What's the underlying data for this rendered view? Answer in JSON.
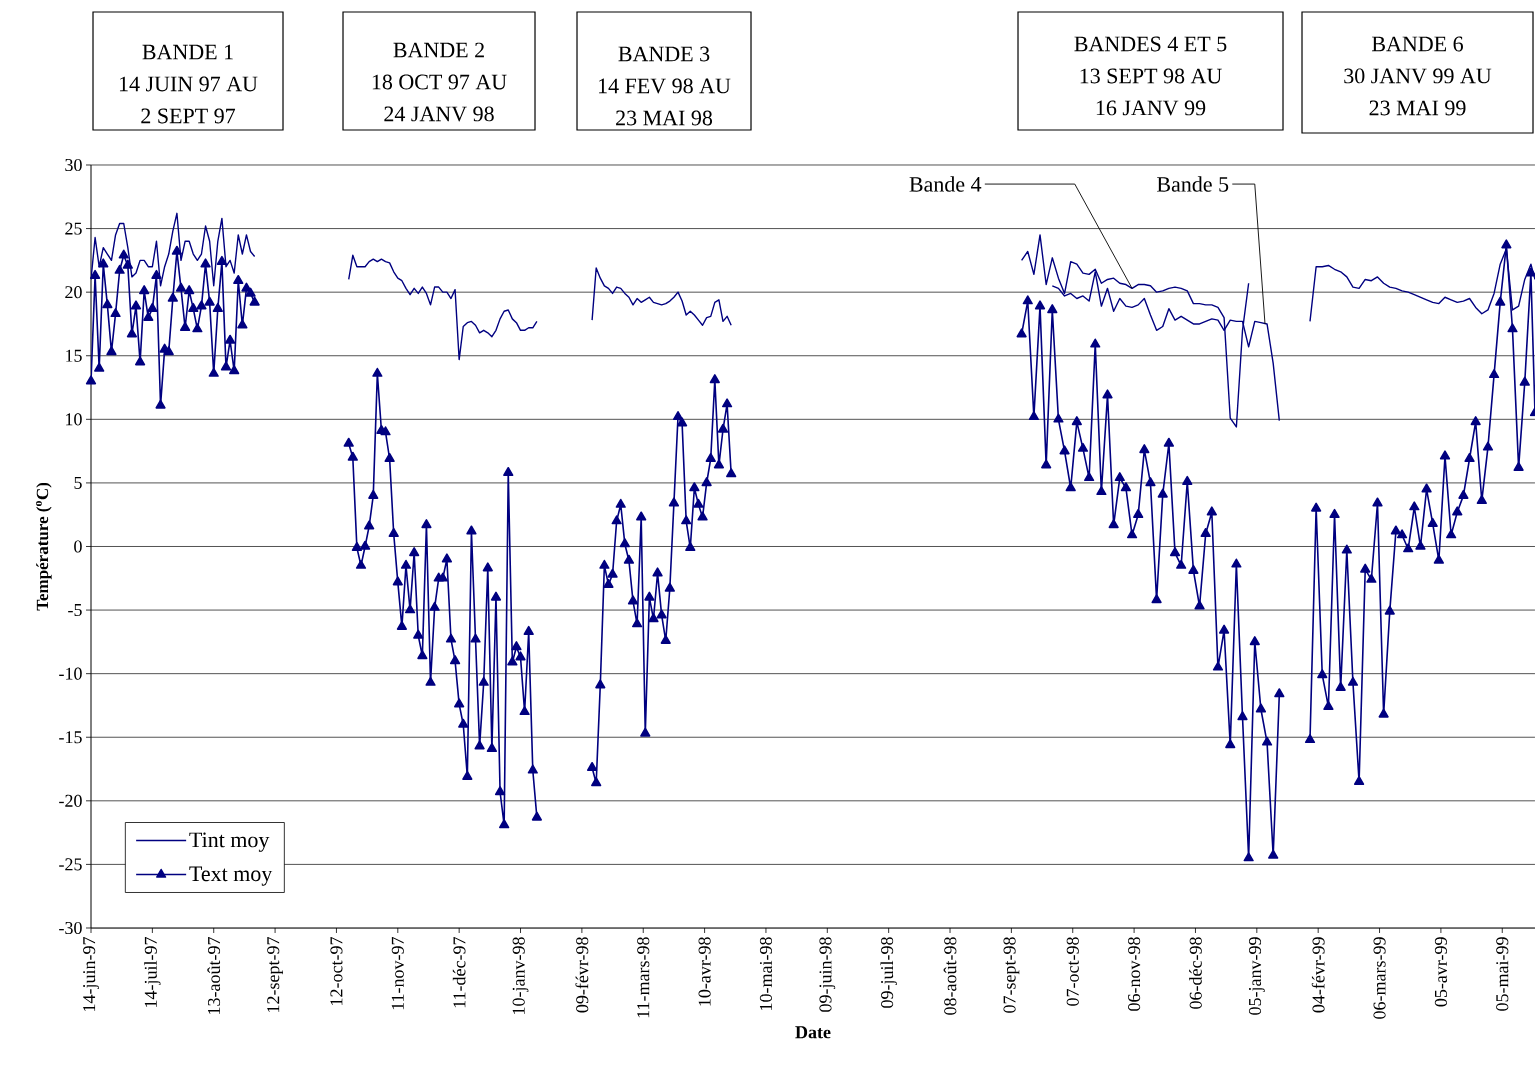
{
  "chart_data": {
    "type": "line",
    "xlabel": "Date",
    "ylabel": "Température ($^{o}$C)",
    "xlim": [
      "1997-06-14",
      "1999-05-21"
    ],
    "ylim": [
      -30,
      30
    ],
    "yticks": [
      -30,
      -25,
      -20,
      -15,
      -10,
      -5,
      0,
      5,
      10,
      15,
      20,
      25,
      30
    ],
    "xticks": [
      {
        "value": "1997-06-14",
        "label": "14-juin-97"
      },
      {
        "value": "1997-07-14",
        "label": "14-juil-97"
      },
      {
        "value": "1997-08-13",
        "label": "13-août-97"
      },
      {
        "value": "1997-09-12",
        "label": "12-sept-97"
      },
      {
        "value": "1997-10-12",
        "label": "12-oct-97"
      },
      {
        "value": "1997-11-11",
        "label": "11-nov-97"
      },
      {
        "value": "1997-12-11",
        "label": "11-déc-97"
      },
      {
        "value": "1998-01-10",
        "label": "10-janv-98"
      },
      {
        "value": "1998-02-09",
        "label": "09-févr-98"
      },
      {
        "value": "1998-03-11",
        "label": "11-mars-98"
      },
      {
        "value": "1998-04-10",
        "label": "10-avr-98"
      },
      {
        "value": "1998-05-10",
        "label": "10-mai-98"
      },
      {
        "value": "1998-06-09",
        "label": "09-juin-98"
      },
      {
        "value": "1998-07-09",
        "label": "09-juil-98"
      },
      {
        "value": "1998-08-08",
        "label": "08-août-98"
      },
      {
        "value": "1998-09-07",
        "label": "07-sept-98"
      },
      {
        "value": "1998-10-07",
        "label": "07-oct-98"
      },
      {
        "value": "1998-11-06",
        "label": "06-nov-98"
      },
      {
        "value": "1998-12-06",
        "label": "06-déc-98"
      },
      {
        "value": "1999-01-05",
        "label": "05-janv-99"
      },
      {
        "value": "1999-02-04",
        "label": "04-févr-99"
      },
      {
        "value": "1999-03-06",
        "label": "06-mars-99"
      },
      {
        "value": "1999-04-05",
        "label": "05-avr-99"
      },
      {
        "value": "1999-05-05",
        "label": "05-mai-99"
      }
    ],
    "grid": "y",
    "legend": "bottom left",
    "annotations": [
      "BANDE 1",
      "14 JUIN 97 AU",
      "2 SEPT 97",
      "BANDE 2",
      "18 OCT 97 AU",
      "24 JANV 98",
      "BANDE 3",
      "14 FEV 98 AU",
      "23 MAI 98",
      "BANDES 4 ET 5",
      "13 SEPT 98 AU",
      "16 JANV 99",
      "BANDE 6",
      "30 JANV 99 AU",
      "23 MAI 99",
      {
        "text": "Bande 4",
        "x": "1998-11-05",
        "y": 20.3
      },
      {
        "text": "Bande 5",
        "x": "1999-01-09",
        "y": 17.5
      }
    ],
    "x": [
      "1997-06-14",
      "1997-06-16",
      "1997-06-18",
      "1997-06-20",
      "1997-06-22",
      "1997-06-24",
      "1997-06-26",
      "1997-06-28",
      "1997-06-30",
      "1997-07-02",
      "1997-07-04",
      "1997-07-06",
      "1997-07-08",
      "1997-07-10",
      "1997-07-12",
      "1997-07-14",
      "1997-07-16",
      "1997-07-18",
      "1997-07-20",
      "1997-07-22",
      "1997-07-24",
      "1997-07-26",
      "1997-07-28",
      "1997-07-30",
      "1997-08-01",
      "1997-08-03",
      "1997-08-05",
      "1997-08-07",
      "1997-08-09",
      "1997-08-11",
      "1997-08-13",
      "1997-08-15",
      "1997-08-17",
      "1997-08-19",
      "1997-08-21",
      "1997-08-23",
      "1997-08-25",
      "1997-08-27",
      "1997-08-29",
      "1997-08-31",
      "1997-09-02",
      "1997-09-22",
      "1997-10-18",
      "1997-10-20",
      "1997-10-22",
      "1997-10-24",
      "1997-10-26",
      "1997-10-28",
      "1997-10-30",
      "1997-11-01",
      "1997-11-03",
      "1997-11-05",
      "1997-11-07",
      "1997-11-09",
      "1997-11-11",
      "1997-11-13",
      "1997-11-15",
      "1997-11-17",
      "1997-11-19",
      "1997-11-21",
      "1997-11-23",
      "1997-11-25",
      "1997-11-27",
      "1997-11-29",
      "1997-12-01",
      "1997-12-03",
      "1997-12-05",
      "1997-12-07",
      "1997-12-09",
      "1997-12-11",
      "1997-12-13",
      "1997-12-15",
      "1997-12-17",
      "1997-12-19",
      "1997-12-21",
      "1997-12-23",
      "1997-12-25",
      "1997-12-27",
      "1997-12-29",
      "1997-12-31",
      "1998-01-02",
      "1998-01-04",
      "1998-01-06",
      "1998-01-08",
      "1998-01-10",
      "1998-01-12",
      "1998-01-14",
      "1998-01-16",
      "1998-01-18",
      "1998-02-01",
      "1998-02-14",
      "1998-02-16",
      "1998-02-18",
      "1998-02-20",
      "1998-02-22",
      "1998-02-24",
      "1998-02-26",
      "1998-02-28",
      "1998-03-02",
      "1998-03-04",
      "1998-03-06",
      "1998-03-08",
      "1998-03-10",
      "1998-03-12",
      "1998-03-14",
      "1998-03-16",
      "1998-03-18",
      "1998-03-20",
      "1998-03-22",
      "1998-03-24",
      "1998-03-26",
      "1998-03-28",
      "1998-03-30",
      "1998-04-01",
      "1998-04-03",
      "1998-04-05",
      "1998-04-07",
      "1998-04-09",
      "1998-04-11",
      "1998-04-13",
      "1998-04-15",
      "1998-04-17",
      "1998-04-19",
      "1998-04-21",
      "1998-04-23",
      "1998-06-29",
      "1998-09-12",
      "1998-09-15",
      "1998-09-18",
      "1998-09-21",
      "1998-09-24",
      "1998-09-27",
      "1998-09-30",
      "1998-10-03",
      "1998-10-06",
      "1998-10-09",
      "1998-10-12",
      "1998-10-15",
      "1998-10-18",
      "1998-10-21",
      "1998-10-24",
      "1998-10-27",
      "1998-10-30",
      "1998-11-02",
      "1998-11-05",
      "1998-11-08",
      "1998-11-11",
      "1998-11-14",
      "1998-11-17",
      "1998-11-20",
      "1998-11-23",
      "1998-11-26",
      "1998-11-29",
      "1998-12-02",
      "1998-12-05",
      "1998-12-08",
      "1998-12-11",
      "1998-12-14",
      "1998-12-17",
      "1998-12-20",
      "1998-12-23",
      "1998-12-26",
      "1998-12-29",
      "1999-01-01",
      "1999-01-04",
      "1999-01-07",
      "1999-01-10",
      "1999-01-13",
      "1999-01-16",
      "1999-01-25",
      "1999-01-31",
      "1999-02-03",
      "1999-02-06",
      "1999-02-09",
      "1999-02-12",
      "1999-02-15",
      "1999-02-18",
      "1999-02-21",
      "1999-02-24",
      "1999-02-27",
      "1999-03-02",
      "1999-03-05",
      "1999-03-08",
      "1999-03-11",
      "1999-03-14",
      "1999-03-17",
      "1999-03-20",
      "1999-03-23",
      "1999-03-26",
      "1999-03-29",
      "1999-04-01",
      "1999-04-04",
      "1999-04-07",
      "1999-04-10",
      "1999-04-13",
      "1999-04-16",
      "1999-04-19",
      "1999-04-22",
      "1999-04-25",
      "1999-04-28",
      "1999-05-01",
      "1999-05-04",
      "1999-05-07",
      "1999-05-10",
      "1999-05-13",
      "1999-05-16",
      "1999-05-19",
      "1999-05-21"
    ],
    "series": [
      {
        "name": "Tint moy",
        "color": "#000080",
        "marker": "none",
        "values": [
          21,
          24.3,
          22,
          23.5,
          23,
          22.5,
          24.5,
          25.4,
          25.4,
          23.5,
          21.2,
          21.5,
          22.5,
          22.5,
          22,
          22,
          24,
          20.5,
          22,
          23,
          24.8,
          26.2,
          22.5,
          24,
          24,
          23,
          22.5,
          23,
          25.2,
          24,
          20.5,
          24,
          25.8,
          22,
          22.5,
          21.5,
          24.5,
          23,
          24.5,
          23.2,
          22.8,
          null,
          21,
          22.9,
          22,
          22,
          22,
          22.4,
          22.6,
          22.4,
          22.6,
          22.4,
          22.3,
          21.6,
          21.1,
          20.9,
          20.3,
          19.8,
          20.3,
          19.9,
          20.4,
          19.9,
          19,
          20.4,
          20.4,
          20,
          20,
          19.5,
          20.2,
          14.7,
          17.3,
          17.6,
          17.7,
          17.4,
          16.8,
          17,
          16.8,
          16.5,
          17,
          17.9,
          18.5,
          18.6,
          17.9,
          17.6,
          17,
          17,
          17.2,
          17.2,
          17.7,
          null,
          17.8,
          21.9,
          21.1,
          20.5,
          20.3,
          19.9,
          20.4,
          20.3,
          19.9,
          19.6,
          19,
          19.5,
          19.2,
          19.4,
          19.6,
          19.2,
          19.1,
          19,
          19.1,
          19.3,
          19.6,
          20,
          19.3,
          18.2,
          18.5,
          18.2,
          17.8,
          17.4,
          18,
          18.1,
          19.2,
          19.4,
          17.7,
          18.1,
          17.4,
          null,
          22.5,
          23.2,
          21.4,
          24.5,
          20.6,
          22.7,
          21.1,
          19.9,
          22.4,
          22.2,
          21.5,
          21.4,
          21.8,
          20.7,
          21,
          21.1,
          20.7,
          20.6,
          20.3,
          20.6,
          20.6,
          20.5,
          20,
          20.1,
          20.3,
          20.4,
          20.3,
          20.1,
          19.1,
          19.1,
          19,
          19,
          18.8,
          18,
          10.1,
          9.4,
          17,
          20.7,
          null,
          null,
          null,
          null,
          null,
          null,
          17.7,
          22,
          22,
          22.1,
          21.8,
          21.6,
          21.2,
          20.4,
          20.3,
          21,
          20.9,
          21.2,
          20.7,
          20.4,
          20.3,
          20.1,
          20,
          19.8,
          19.6,
          19.4,
          19.2,
          19.1,
          19.6,
          19.4,
          19.2,
          19.3,
          19.5,
          18.8,
          18.3,
          18.6,
          19.9,
          22.2,
          23.4,
          18.6,
          18.9,
          21,
          22.2,
          21
        ]
      },
      {
        "name": "Text moy",
        "color": "#000080",
        "marker": "triangle",
        "values": [
          13,
          21.3,
          14,
          22.2,
          19,
          15.3,
          18.3,
          21.7,
          22.9,
          22.1,
          16.7,
          18.9,
          14.5,
          20.1,
          18,
          18.7,
          21.3,
          11.1,
          15.5,
          15.3,
          19.5,
          23.2,
          20.3,
          17.2,
          20.1,
          18.7,
          17.1,
          18.9,
          22.2,
          19.2,
          13.6,
          18.7,
          22.4,
          14.1,
          16.2,
          13.8,
          20.9,
          17.4,
          20.3,
          19.9,
          19.2,
          null,
          8.1,
          7,
          -0.1,
          -1.5,
          0,
          1.6,
          4,
          13.6,
          9.1,
          9,
          6.9,
          1,
          -2.8,
          -6.3,
          -1.5,
          -5,
          -0.5,
          -7,
          -8.6,
          1.7,
          -10.7,
          -4.8,
          -2.5,
          -2.5,
          -1,
          -7.3,
          -9,
          -12.4,
          -14,
          -18.1,
          1.2,
          -7.3,
          -15.7,
          -10.7,
          -1.7,
          -15.9,
          -4,
          -19.3,
          -21.9,
          5.8,
          -9.1,
          -7.9,
          -8.7,
          -13,
          -6.7,
          -17.6,
          -21.3,
          null,
          -17.4,
          -18.6,
          -10.9,
          -1.5,
          -3,
          -2.2,
          2,
          3.3,
          0.2,
          -1.1,
          -4.3,
          -6.1,
          2.3,
          -14.7,
          -4,
          -5.7,
          -2.1,
          -5.4,
          -7.4,
          -3.3,
          3.4,
          10.2,
          9.7,
          2,
          -0.1,
          4.6,
          3.3,
          2.3,
          5,
          6.9,
          13.1,
          6.4,
          9.2,
          11.2,
          5.7,
          null,
          16.7,
          19.3,
          10.2,
          18.9,
          6.4,
          18.6,
          10,
          7.5,
          4.6,
          9.8,
          7.7,
          5.4,
          15.9,
          4.3,
          11.9,
          1.7,
          5.4,
          4.6,
          0.9,
          2.5,
          7.6,
          5,
          -4.2,
          4.1,
          8.1,
          -0.5,
          -1.5,
          5.1,
          -1.9,
          -4.7,
          1,
          2.7,
          -9.5,
          -6.6,
          -15.6,
          -1.4,
          -13.4,
          -24.5,
          -7.5,
          -12.8,
          -15.4,
          -24.3,
          -11.6,
          null,
          -15.2,
          3,
          -10.1,
          -12.6,
          2.5,
          -11.1,
          -0.3,
          -10.7,
          -18.5,
          -1.8,
          -2.6,
          3.4,
          -13.2,
          -5.1,
          1.2,
          0.9,
          -0.2,
          3.1,
          0,
          4.5,
          1.8,
          -1.1,
          7.1,
          0.9,
          2.7,
          4,
          6.9,
          9.8,
          3.6,
          7.8,
          13.5,
          19.2,
          23.7,
          17.1,
          6.2,
          12.9,
          21.5,
          10.5
        ]
      },
      {
        "color": "#000080",
        "marker": "none",
        "x": [
          "1998-09-27",
          "1998-09-30",
          "1998-10-03",
          "1998-10-06",
          "1998-10-09",
          "1998-10-12",
          "1998-10-15",
          "1998-10-18",
          "1998-10-21",
          "1998-10-24",
          "1998-10-27",
          "1998-10-30",
          "1998-11-02",
          "1998-11-05",
          "1998-11-08",
          "1998-11-11",
          "1998-11-14",
          "1998-11-17",
          "1998-11-20",
          "1998-11-23",
          "1998-11-26",
          "1998-11-29",
          "1998-12-02",
          "1998-12-05",
          "1998-12-08",
          "1998-12-11",
          "1998-12-14",
          "1998-12-17",
          "1998-12-20",
          "1998-12-23",
          "1998-12-26",
          "1998-12-29",
          "1999-01-01",
          "1999-01-04",
          "1999-01-07",
          "1999-01-10",
          "1999-01-13",
          "1999-01-16"
        ],
        "values": [
          20.5,
          20.3,
          19.7,
          19.9,
          19.5,
          19.7,
          19.3,
          21.6,
          18.9,
          20.3,
          18.5,
          19.5,
          18.9,
          18.8,
          19,
          19.5,
          18.2,
          17,
          17.3,
          18.7,
          17.8,
          18.1,
          17.8,
          17.5,
          17.5,
          17.7,
          17.9,
          17.8,
          17,
          17.8,
          17.7,
          17.7,
          15.7,
          17.7,
          17.6,
          17.5,
          14.4,
          9.9
        ]
      }
    ]
  }
}
